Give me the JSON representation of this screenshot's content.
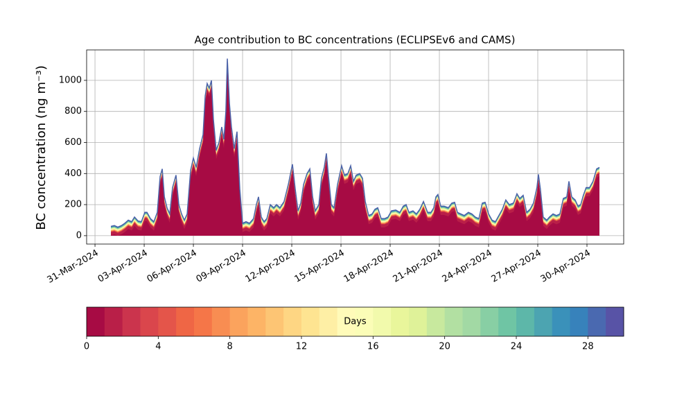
{
  "chart_data": [
    {
      "type": "area",
      "title": "Age contribution to BC concentrations (ECLIPSEv6 and CAMS)",
      "ylabel": "BC concentration (ng m⁻³)",
      "grid": true,
      "x": [
        0.97,
        1.18,
        1.39,
        1.61,
        1.82,
        2.03,
        2.24,
        2.41,
        2.62,
        2.83,
        3.04,
        3.17,
        3.38,
        3.59,
        3.8,
        3.97,
        4.1,
        4.23,
        4.39,
        4.56,
        4.73,
        4.94,
        5.11,
        5.28,
        5.45,
        5.62,
        5.83,
        6.0,
        6.17,
        6.38,
        6.59,
        6.72,
        6.84,
        6.97,
        7.1,
        7.22,
        7.39,
        7.56,
        7.73,
        7.86,
        7.98,
        8.07,
        8.2,
        8.32,
        8.49,
        8.66,
        8.83,
        9.0,
        9.21,
        9.42,
        9.67,
        9.84,
        9.97,
        10.14,
        10.31,
        10.48,
        10.69,
        10.9,
        11.07,
        11.28,
        11.53,
        11.79,
        12.04,
        12.21,
        12.38,
        12.55,
        12.72,
        12.93,
        13.1,
        13.27,
        13.43,
        13.65,
        13.81,
        13.98,
        14.11,
        14.24,
        14.41,
        14.58,
        14.79,
        15.04,
        15.21,
        15.42,
        15.59,
        15.76,
        15.93,
        16.14,
        16.31,
        16.48,
        16.69,
        16.9,
        17.07,
        17.24,
        17.45,
        17.66,
        17.87,
        18.08,
        18.34,
        18.59,
        18.8,
        18.97,
        19.14,
        19.39,
        19.6,
        19.81,
        20.03,
        20.28,
        20.49,
        20.66,
        20.79,
        20.91,
        21.08,
        21.29,
        21.55,
        21.76,
        21.93,
        22.1,
        22.31,
        22.52,
        22.77,
        22.98,
        23.19,
        23.41,
        23.62,
        23.79,
        24.0,
        24.21,
        24.42,
        24.63,
        24.84,
        25.05,
        25.26,
        25.52,
        25.73,
        25.9,
        26.11,
        26.32,
        26.53,
        26.74,
        26.95,
        27.04,
        27.16,
        27.33,
        27.55,
        27.71,
        27.93,
        28.14,
        28.35,
        28.56,
        28.77,
        28.9,
        29.07,
        29.28,
        29.45,
        29.62,
        29.78,
        29.95,
        30.16,
        30.37,
        30.59,
        30.76
      ],
      "series": [
        {
          "color": "#4b62a8",
          "values": [
            60,
            65,
            55,
            65,
            80,
            100,
            90,
            120,
            95,
            90,
            150,
            150,
            110,
            90,
            150,
            380,
            430,
            250,
            180,
            140,
            310,
            390,
            200,
            140,
            100,
            140,
            420,
            500,
            440,
            560,
            650,
            900,
            980,
            950,
            1000,
            750,
            550,
            600,
            700,
            620,
            800,
            1140,
            850,
            700,
            560,
            670,
            300,
            80,
            90,
            80,
            110,
            200,
            250,
            120,
            90,
            110,
            200,
            180,
            200,
            180,
            220,
            330,
            460,
            300,
            160,
            210,
            330,
            400,
            430,
            250,
            160,
            200,
            370,
            440,
            530,
            380,
            200,
            180,
            330,
            450,
            390,
            400,
            450,
            350,
            390,
            400,
            370,
            220,
            130,
            140,
            170,
            180,
            110,
            110,
            120,
            160,
            165,
            150,
            190,
            200,
            150,
            160,
            140,
            170,
            220,
            150,
            150,
            180,
            250,
            265,
            190,
            190,
            180,
            210,
            215,
            150,
            140,
            130,
            150,
            140,
            120,
            110,
            210,
            215,
            140,
            100,
            90,
            130,
            170,
            230,
            200,
            210,
            270,
            240,
            260,
            150,
            170,
            210,
            310,
            395,
            300,
            120,
            100,
            120,
            140,
            130,
            140,
            240,
            250,
            350,
            250,
            230,
            190,
            200,
            260,
            310,
            310,
            350,
            430,
            440
          ]
        }
      ],
      "xlim": [
        -0.51,
        32.24
      ],
      "xticks": [
        {
          "value": 0,
          "label": "31-Mar-2024"
        },
        {
          "value": 3,
          "label": "03-Apr-2024"
        },
        {
          "value": 6,
          "label": "06-Apr-2024"
        },
        {
          "value": 9,
          "label": "09-Apr-2024"
        },
        {
          "value": 12,
          "label": "12-Apr-2024"
        },
        {
          "value": 15,
          "label": "15-Apr-2024"
        },
        {
          "value": 18,
          "label": "18-Apr-2024"
        },
        {
          "value": 21,
          "label": "21-Apr-2024"
        },
        {
          "value": 24,
          "label": "24-Apr-2024"
        },
        {
          "value": 27,
          "label": "27-Apr-2024"
        },
        {
          "value": 30,
          "label": "30-Apr-2024"
        }
      ],
      "ylim": [
        -54,
        1196
      ],
      "yticks": [
        0,
        200,
        400,
        600,
        800,
        1000
      ]
    },
    {
      "type": "colorbar",
      "label": "Days",
      "lim": [
        0,
        30
      ],
      "ticks": [
        0,
        4,
        8,
        12,
        16,
        20,
        24,
        28
      ],
      "colors": [
        "#a70b44",
        "#b91f48",
        "#cb344d",
        "#da464c",
        "#e4554a",
        "#ef6645",
        "#f57648",
        "#f88d52",
        "#fba35d",
        "#fdb466",
        "#fdc574",
        "#fed683",
        "#fee491",
        "#feefa5",
        "#fffbb9",
        "#fbfdb7",
        "#f2faac",
        "#e9f69b",
        "#dff299",
        "#c8e99e",
        "#b2e0a2",
        "#a2d9a4",
        "#88cfa4",
        "#6fc5a4",
        "#5db7a9",
        "#4ca4b1",
        "#3a91ba",
        "#3782bb",
        "#4a69b0",
        "#5853a6"
      ]
    }
  ]
}
